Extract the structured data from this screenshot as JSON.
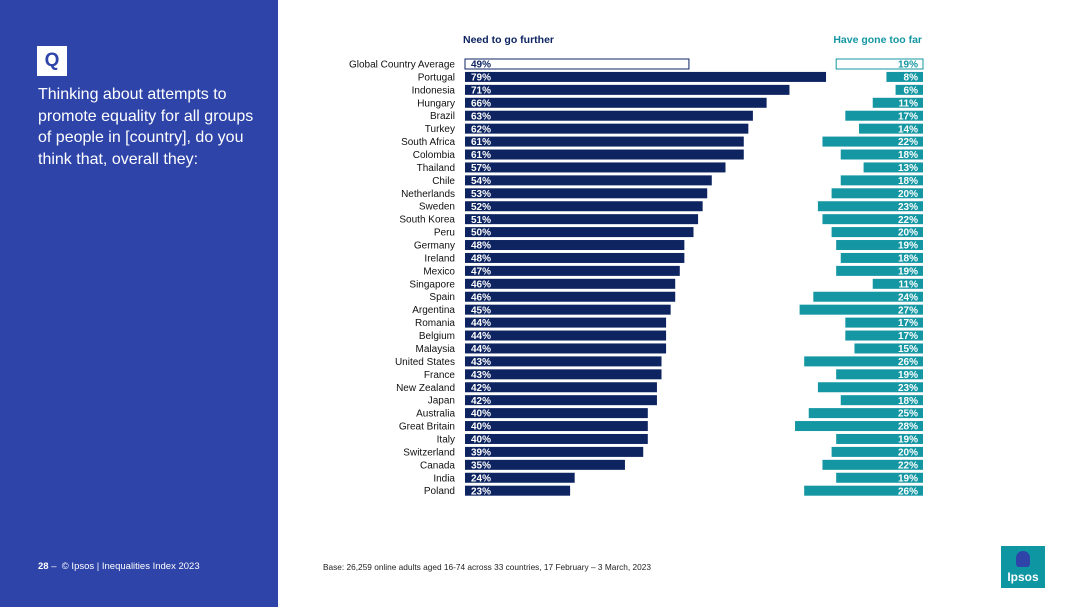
{
  "question": {
    "badge": "Q",
    "text": "Thinking about attempts to promote equality for all groups of people in [country], do you think that, overall they:"
  },
  "footer": {
    "page_number": "28",
    "dash": "–",
    "source": "© Ipsos | Inequalities Index 2023"
  },
  "base_note": "Base: 26,259 online adults aged 16-74 across 33 countries, 17 February – 3 March, 2023",
  "logo": {
    "text": "Ipsos"
  },
  "colors": {
    "sidebar": "#2e44a8",
    "left_bar": "#0d2461",
    "right_bar": "#1497a3",
    "left_header": "#0d2461",
    "right_header": "#1497a3"
  },
  "chart_data": {
    "type": "bar",
    "orientation": "horizontal diverging",
    "series": [
      {
        "name": "Need to go further",
        "values": [
          49,
          79,
          71,
          66,
          63,
          62,
          61,
          61,
          57,
          54,
          53,
          52,
          51,
          50,
          48,
          48,
          47,
          46,
          46,
          45,
          44,
          44,
          44,
          43,
          43,
          42,
          42,
          40,
          40,
          40,
          39,
          35,
          24,
          23
        ]
      },
      {
        "name": "Have gone too far",
        "values": [
          19,
          8,
          6,
          11,
          17,
          14,
          22,
          18,
          13,
          18,
          20,
          23,
          22,
          20,
          19,
          18,
          19,
          11,
          24,
          27,
          17,
          17,
          15,
          26,
          19,
          23,
          18,
          25,
          28,
          19,
          20,
          22,
          19,
          26
        ]
      }
    ],
    "categories": [
      "Global Country Average",
      "Portugal",
      "Indonesia",
      "Hungary",
      "Brazil",
      "Turkey",
      "South Africa",
      "Colombia",
      "Thailand",
      "Chile",
      "Netherlands",
      "Sweden",
      "South Korea",
      "Peru",
      "Germany",
      "Ireland",
      "Mexico",
      "Singapore",
      "Spain",
      "Argentina",
      "Romania",
      "Belgium",
      "Malaysia",
      "United States",
      "France",
      "New Zealand",
      "Japan",
      "Australia",
      "Great Britain",
      "Italy",
      "Switzerland",
      "Canada",
      "India",
      "Poland"
    ],
    "value_suffix": "%",
    "highlight_first_row": true
  }
}
